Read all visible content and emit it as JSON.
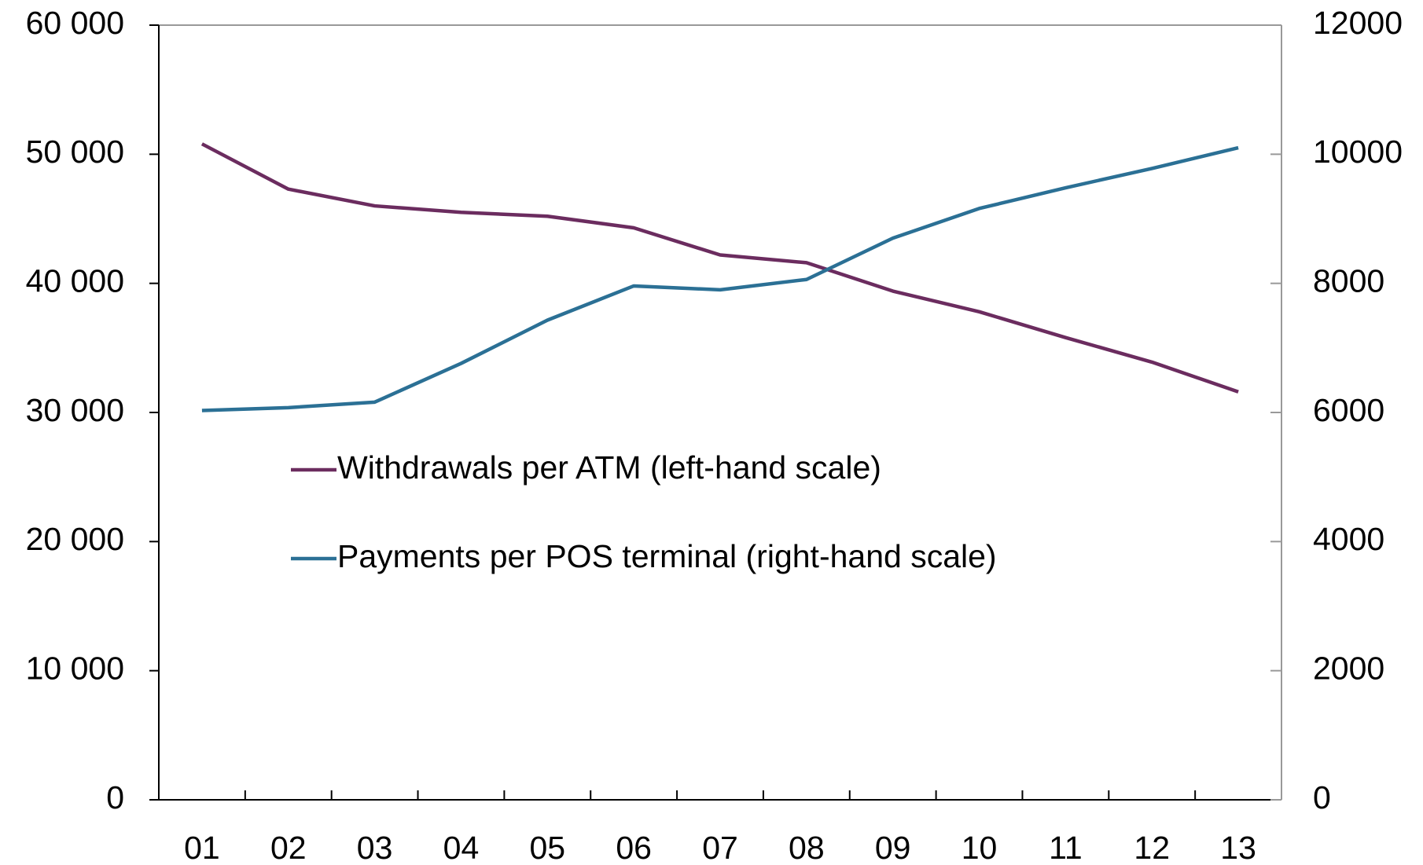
{
  "chart_data": {
    "type": "line",
    "categories": [
      "01",
      "02",
      "03",
      "04",
      "05",
      "06",
      "07",
      "08",
      "09",
      "10",
      "11",
      "12",
      "13"
    ],
    "series": [
      {
        "name": "Withdrawals per ATM (left-hand scale)",
        "color": "#6b2c5f",
        "axis": "y",
        "values": [
          50800,
          47300,
          46000,
          45500,
          45200,
          44300,
          42200,
          41600,
          39400,
          37800,
          35800,
          33900,
          31600
        ]
      },
      {
        "name": "Payments per POS terminal (right-hand scale)",
        "color": "#2b7095",
        "axis": "y2",
        "values": [
          6030,
          6075,
          6160,
          6760,
          7430,
          7960,
          7900,
          8060,
          8700,
          9160,
          9480,
          9780,
          10100
        ]
      }
    ],
    "ylim": [
      0,
      60000
    ],
    "yticks": [
      0,
      {
        "value": 10000,
        "label": "10 000"
      },
      {
        "value": 20000,
        "label": "20 000"
      },
      {
        "value": 30000,
        "label": "30 000"
      },
      {
        "value": 40000,
        "label": "40 000"
      },
      {
        "value": 50000,
        "label": "50 000"
      },
      {
        "value": 60000,
        "label": "60 000"
      }
    ],
    "y2lim": [
      0,
      12000
    ],
    "y2ticks": [
      0,
      2000,
      4000,
      6000,
      8000,
      10000,
      12000
    ],
    "grid": false
  }
}
